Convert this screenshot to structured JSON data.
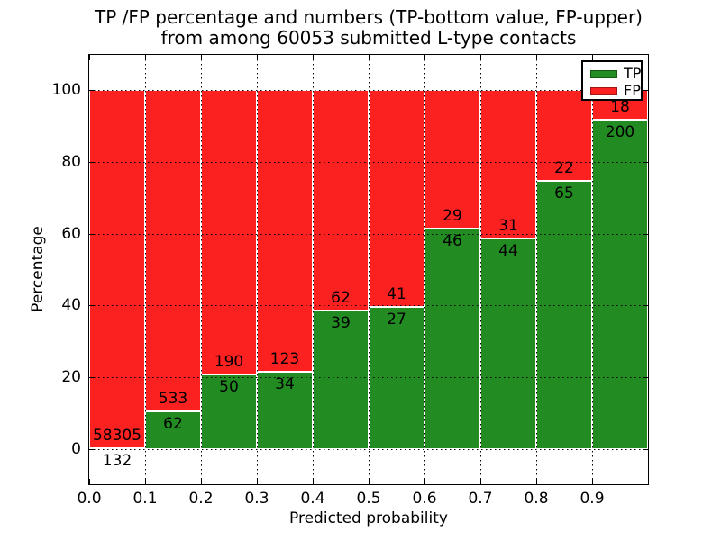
{
  "figure": {
    "title_line1": "TP /FP percentage and numbers (TP-bottom value, FP-upper)",
    "title_line2": "from among 60053 submitted L-type contacts"
  },
  "chart_data": {
    "type": "bar",
    "stacked": true,
    "normalized_to": 100,
    "title": "TP /FP percentage and numbers (TP-bottom value, FP-upper) from among 60053 submitted L-type contacts",
    "xlabel": "Predicted probability",
    "ylabel": "Percentage",
    "xlim": [
      0.0,
      1.0
    ],
    "ylim": [
      -10,
      110
    ],
    "bin_width": 0.1,
    "x_tick_labels": [
      "0.0",
      "0.1",
      "0.2",
      "0.3",
      "0.4",
      "0.5",
      "0.6",
      "0.7",
      "0.8",
      "0.9"
    ],
    "y_tick_labels": [
      "0",
      "20",
      "40",
      "60",
      "80",
      "100"
    ],
    "y_tick_values": [
      0,
      20,
      40,
      60,
      80,
      100
    ],
    "grid": "dotted-black-major",
    "bar_edge_color": "#ffffff",
    "total_contacts": 60053,
    "legend": {
      "position": "upper right",
      "entries": [
        {
          "label": "TP",
          "color": "#228b22"
        },
        {
          "label": "FP",
          "color": "#fb2121"
        }
      ]
    },
    "series": [
      {
        "name": "TP",
        "color": "#228b22",
        "counts": [
          132,
          62,
          50,
          34,
          39,
          27,
          46,
          44,
          65,
          200
        ]
      },
      {
        "name": "FP",
        "color": "#fb2121",
        "counts": [
          58305,
          533,
          190,
          123,
          62,
          41,
          29,
          31,
          22,
          18
        ]
      }
    ],
    "tp_percent_per_bin": [
      0.23,
      10.42,
      20.83,
      21.66,
      38.61,
      39.71,
      61.33,
      58.67,
      74.71,
      91.74
    ]
  }
}
